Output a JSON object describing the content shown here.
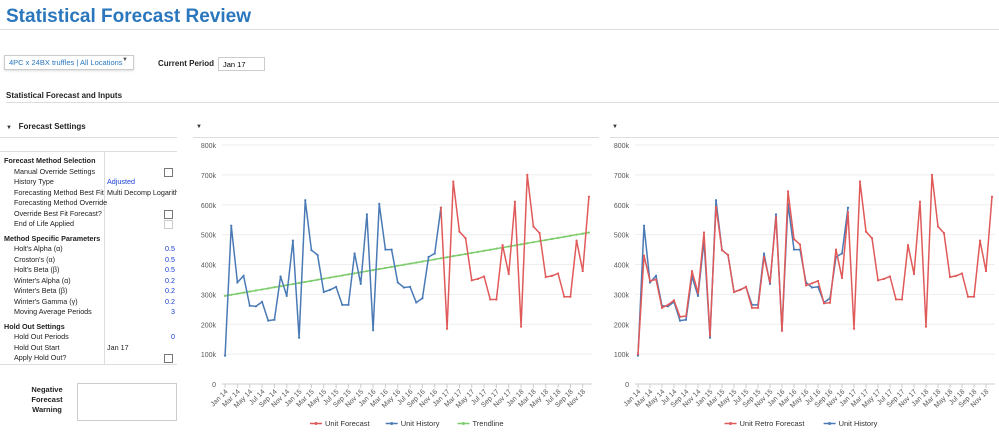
{
  "header": {
    "title": "Statistical Forecast Review"
  },
  "filters": {
    "item_selector": "4PC x 24BX truffles | All Locations",
    "current_period_label": "Current Period",
    "current_period": "Jan 17"
  },
  "section": {
    "title": "Statistical Forecast and Inputs",
    "settings_title": "Forecast Settings"
  },
  "settings": {
    "method_selection": {
      "heading": "Forecast Method Selection",
      "rows": [
        {
          "label": "Manual Override Settings",
          "checkbox": false
        },
        {
          "label": "History Type",
          "value": "Adjusted"
        },
        {
          "label": "Forecasting Method Best Fit",
          "value": "Multi Decomp Logarithmic"
        },
        {
          "label": "Forecasting Method Override",
          "value": ""
        },
        {
          "label": "Override Best Fit Forecast?",
          "checkbox": false
        },
        {
          "label": "End of Life Applied",
          "checkbox": false,
          "disabled": true
        }
      ]
    },
    "method_params": {
      "heading": "Method Specific Parameters",
      "rows": [
        {
          "label": "Holt's Alpha (α)",
          "value": "0.5"
        },
        {
          "label": "Croston's (α)",
          "value": "0.5"
        },
        {
          "label": "Holt's Beta (β)",
          "value": "0.5"
        },
        {
          "label": "Winter's Alpha (α)",
          "value": "0.2"
        },
        {
          "label": "Winter's Beta (β)",
          "value": "0.2"
        },
        {
          "label": "Winter's Gamma (γ)",
          "value": "0.2"
        },
        {
          "label": "Moving Average Periods",
          "value": "3"
        }
      ]
    },
    "hold_out": {
      "heading": "Hold Out Settings",
      "rows": [
        {
          "label": "Hold Out Periods",
          "value": "0"
        },
        {
          "label": "Hold Out Start",
          "value": "Jan 17"
        },
        {
          "label": "Apply Hold Out?",
          "checkbox": false
        }
      ]
    }
  },
  "negative_warning": {
    "label": "Negative Forecast Warning",
    "value": ""
  },
  "chart_data": [
    {
      "type": "line",
      "ylim": [
        0,
        800000
      ],
      "yticks": [
        "0",
        "100k",
        "200k",
        "300k",
        "400k",
        "500k",
        "600k",
        "700k",
        "800k"
      ],
      "x_start": "Jan 14",
      "months": 60,
      "xtick_labels": [
        "Jan 14",
        "Mar 14",
        "May 14",
        "Jul 14",
        "Sep 14",
        "Nov 14",
        "Jan 15",
        "Mar 15",
        "May 15",
        "Jul 15",
        "Sep 15",
        "Nov 15",
        "Jan 16",
        "Mar 16",
        "May 16",
        "Jul 16",
        "Sep 16",
        "Nov 16",
        "Jan 17",
        "Mar 17",
        "May 17",
        "Jul 17",
        "Sep 17",
        "Nov 17",
        "Jan 18",
        "Mar 18",
        "May 18",
        "Jul 18",
        "Sep 18",
        "Nov 18"
      ],
      "legend": "bottom",
      "grid": true,
      "series": [
        {
          "name": "Unit Forecast",
          "color": "#e05a5a",
          "start": "Dec 16",
          "values": [
            590,
            185,
            678,
            510,
            488,
            347,
            352,
            360,
            283,
            283,
            465,
            368,
            610,
            192,
            700,
            527,
            505,
            358,
            362,
            370,
            292,
            292,
            480,
            378,
            627
          ]
        },
        {
          "name": "Unit History",
          "color": "#4a7ab5",
          "start": "Jan 14",
          "values": [
            95,
            530,
            340,
            362,
            262,
            260,
            275,
            212,
            215,
            360,
            295,
            480,
            155,
            615,
            448,
            432,
            308,
            315,
            325,
            265,
            265,
            437,
            335,
            568,
            180,
            603,
            450,
            450,
            340,
            323,
            325,
            273,
            287,
            425,
            437,
            590
          ]
        },
        {
          "name": "Trendline",
          "color": "#7ccc6a",
          "start": "Jan 14",
          "linear": [
            295,
            507
          ]
        }
      ],
      "unit": "k"
    },
    {
      "type": "line",
      "ylim": [
        0,
        800000
      ],
      "yticks": [
        "0",
        "100k",
        "200k",
        "300k",
        "400k",
        "500k",
        "600k",
        "700k",
        "800k"
      ],
      "x_start": "Jan 14",
      "months": 60,
      "xtick_labels": [
        "Jan 14",
        "Mar 14",
        "May 14",
        "Jul 14",
        "Sep 14",
        "Nov 14",
        "Jan 15",
        "Mar 15",
        "May 15",
        "Jul 15",
        "Sep 15",
        "Nov 15",
        "Jan 16",
        "Mar 16",
        "May 16",
        "Jul 16",
        "Sep 16",
        "Nov 16",
        "Jan 17",
        "Mar 17",
        "May 17",
        "Jul 17",
        "Sep 17",
        "Nov 17",
        "Jan 18",
        "Mar 18",
        "May 18",
        "Jul 18",
        "Sep 18",
        "Nov 18"
      ],
      "legend": "bottom",
      "grid": true,
      "series": [
        {
          "name": "Unit Retro Forecast",
          "color": "#e05a5a",
          "start": "Jan 14",
          "values": [
            100,
            430,
            345,
            350,
            255,
            265,
            280,
            225,
            227,
            378,
            305,
            507,
            162,
            593,
            448,
            432,
            308,
            315,
            325,
            255,
            255,
            425,
            340,
            558,
            178,
            645,
            485,
            467,
            330,
            337,
            345,
            270,
            272,
            450,
            355,
            575,
            185,
            678,
            510,
            488,
            347,
            352,
            360,
            283,
            283,
            465,
            368,
            610,
            192,
            700,
            527,
            505,
            358,
            362,
            370,
            292,
            292,
            480,
            378,
            627
          ]
        },
        {
          "name": "Unit History",
          "color": "#4a7ab5",
          "start": "Jan 14",
          "values": [
            95,
            530,
            340,
            362,
            262,
            260,
            275,
            212,
            215,
            360,
            295,
            480,
            155,
            615,
            448,
            432,
            308,
            315,
            325,
            265,
            265,
            437,
            335,
            568,
            180,
            603,
            450,
            450,
            340,
            323,
            325,
            273,
            287,
            425,
            437,
            590
          ]
        }
      ],
      "unit": "k"
    }
  ]
}
